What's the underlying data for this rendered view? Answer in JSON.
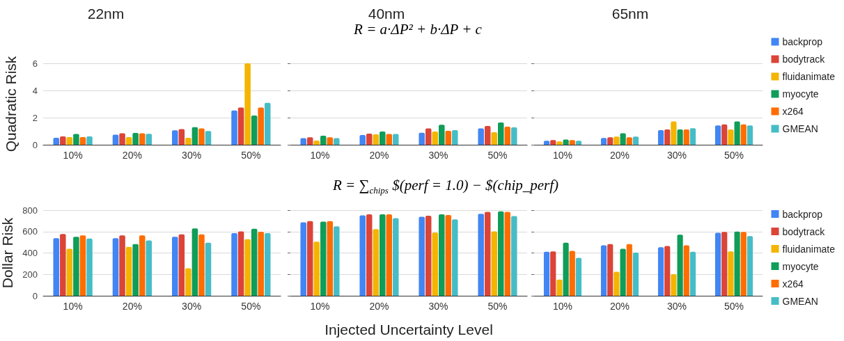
{
  "chart_data": [
    {
      "type": "bar",
      "title": "22nm",
      "ylabel": "Quadratic Risk",
      "categories": [
        "10%",
        "20%",
        "30%",
        "50%"
      ],
      "ylim": [
        0,
        6
      ],
      "yticks": [
        0,
        2,
        4,
        6
      ],
      "grid": "y",
      "series": [
        {
          "color": "#4285f4",
          "values": [
            0.51,
            0.75,
            1.06,
            2.52
          ]
        },
        {
          "color": "#db4437",
          "values": [
            0.62,
            0.84,
            1.15,
            2.74
          ]
        },
        {
          "color": "#f4b400",
          "values": [
            0.57,
            0.57,
            0.51,
            6.0
          ]
        },
        {
          "color": "#0f9d58",
          "values": [
            0.79,
            0.87,
            1.29,
            2.16
          ]
        },
        {
          "color": "#ff6d01",
          "values": [
            0.57,
            0.84,
            1.2,
            2.74
          ]
        },
        {
          "color": "#46bdc6",
          "values": [
            0.62,
            0.81,
            1.01,
            3.09
          ]
        }
      ]
    },
    {
      "type": "bar",
      "title": "40nm",
      "annotations": [
        "R = a·ΔP² + b·ΔP + c"
      ],
      "categories": [
        "10%",
        "20%",
        "30%",
        "50%"
      ],
      "ylim": [
        0,
        6
      ],
      "yticks": [
        0,
        2,
        4,
        6
      ],
      "grid": "y",
      "tick_labels": "x",
      "series": [
        {
          "color": "#4285f4",
          "values": [
            0.49,
            0.72,
            0.89,
            1.21
          ]
        },
        {
          "color": "#db4437",
          "values": [
            0.55,
            0.82,
            1.21,
            1.38
          ]
        },
        {
          "color": "#f4b400",
          "values": [
            0.31,
            0.77,
            0.97,
            0.92
          ]
        },
        {
          "color": "#0f9d58",
          "values": [
            0.67,
            0.97,
            1.47,
            1.64
          ]
        },
        {
          "color": "#ff6d01",
          "values": [
            0.55,
            0.8,
            1.02,
            1.33
          ]
        },
        {
          "color": "#46bdc6",
          "values": [
            0.49,
            0.8,
            1.08,
            1.28
          ]
        }
      ]
    },
    {
      "type": "bar",
      "title": "65nm",
      "categories": [
        "10%",
        "20%",
        "30%",
        "50%"
      ],
      "ylim": [
        0,
        6
      ],
      "yticks": [
        0,
        2,
        4,
        6
      ],
      "grid": "y",
      "tick_labels": "x",
      "legend": "right",
      "series": [
        {
          "name": "backprop",
          "color": "#4285f4",
          "values": [
            0.3,
            0.5,
            1.08,
            1.42
          ]
        },
        {
          "name": "bodytrack",
          "color": "#db4437",
          "values": [
            0.35,
            0.55,
            1.13,
            1.5
          ]
        },
        {
          "name": "fluidanimate",
          "color": "#f4b400",
          "values": [
            0.25,
            0.6,
            1.72,
            1.13
          ]
        },
        {
          "name": "myocyte",
          "color": "#0f9d58",
          "values": [
            0.38,
            0.85,
            1.13,
            1.72
          ]
        },
        {
          "name": "x264",
          "color": "#ff6d01",
          "values": [
            0.35,
            0.55,
            1.13,
            1.5
          ]
        },
        {
          "name": "GMEAN",
          "color": "#46bdc6",
          "values": [
            0.3,
            0.6,
            1.22,
            1.42
          ]
        }
      ]
    },
    {
      "type": "bar",
      "ylabel": "Dollar Risk",
      "categories": [
        "10%",
        "20%",
        "30%",
        "50%"
      ],
      "ylim": [
        0,
        800
      ],
      "yticks": [
        0,
        200,
        400,
        600,
        800
      ],
      "grid": "y",
      "series": [
        {
          "color": "#4285f4",
          "values": [
            539,
            539,
            552,
            585
          ]
        },
        {
          "color": "#db4437",
          "values": [
            578,
            565,
            574,
            602
          ]
        },
        {
          "color": "#f4b400",
          "values": [
            439,
            457,
            257,
            528
          ]
        },
        {
          "color": "#0f9d58",
          "values": [
            552,
            483,
            630,
            626
          ]
        },
        {
          "color": "#ff6d01",
          "values": [
            565,
            565,
            574,
            598
          ]
        },
        {
          "color": "#46bdc6",
          "values": [
            535,
            517,
            496,
            585
          ]
        }
      ]
    },
    {
      "type": "bar",
      "xlabel": "Injected Uncertainty Level",
      "annotations": [
        "R = ∑$_{chips}$ $(perf = 1.0) − $(chip_perf)"
      ],
      "categories": [
        "10%",
        "20%",
        "30%",
        "50%"
      ],
      "ylim": [
        0,
        800
      ],
      "yticks": [
        0,
        200,
        400,
        600,
        800
      ],
      "grid": "y",
      "tick_labels": "x",
      "series": [
        {
          "color": "#4285f4",
          "values": [
            686,
            751,
            738,
            766
          ]
        },
        {
          "color": "#db4437",
          "values": [
            697,
            761,
            748,
            783
          ]
        },
        {
          "color": "#f4b400",
          "values": [
            505,
            622,
            591,
            602
          ]
        },
        {
          "color": "#0f9d58",
          "values": [
            692,
            761,
            761,
            789
          ]
        },
        {
          "color": "#ff6d01",
          "values": [
            697,
            761,
            755,
            783
          ]
        },
        {
          "color": "#46bdc6",
          "values": [
            649,
            725,
            714,
            744
          ]
        }
      ]
    },
    {
      "type": "bar",
      "categories": [
        "10%",
        "20%",
        "30%",
        "50%"
      ],
      "ylim": [
        0,
        800
      ],
      "yticks": [
        0,
        200,
        400,
        600,
        800
      ],
      "grid": "y",
      "tick_labels": "x",
      "legend": "right",
      "series": [
        {
          "name": "backprop",
          "color": "#4285f4",
          "values": [
            411,
            472,
            454,
            589
          ]
        },
        {
          "name": "bodytrack",
          "color": "#db4437",
          "values": [
            415,
            483,
            465,
            596
          ]
        },
        {
          "name": "fluidanimate",
          "color": "#f4b400",
          "values": [
            152,
            224,
            202,
            415
          ]
        },
        {
          "name": "myocyte",
          "color": "#0f9d58",
          "values": [
            496,
            439,
            570,
            600
          ]
        },
        {
          "name": "x264",
          "color": "#ff6d01",
          "values": [
            420,
            483,
            472,
            596
          ]
        },
        {
          "name": "GMEAN",
          "color": "#46bdc6",
          "values": [
            354,
            404,
            411,
            557
          ]
        }
      ]
    }
  ]
}
